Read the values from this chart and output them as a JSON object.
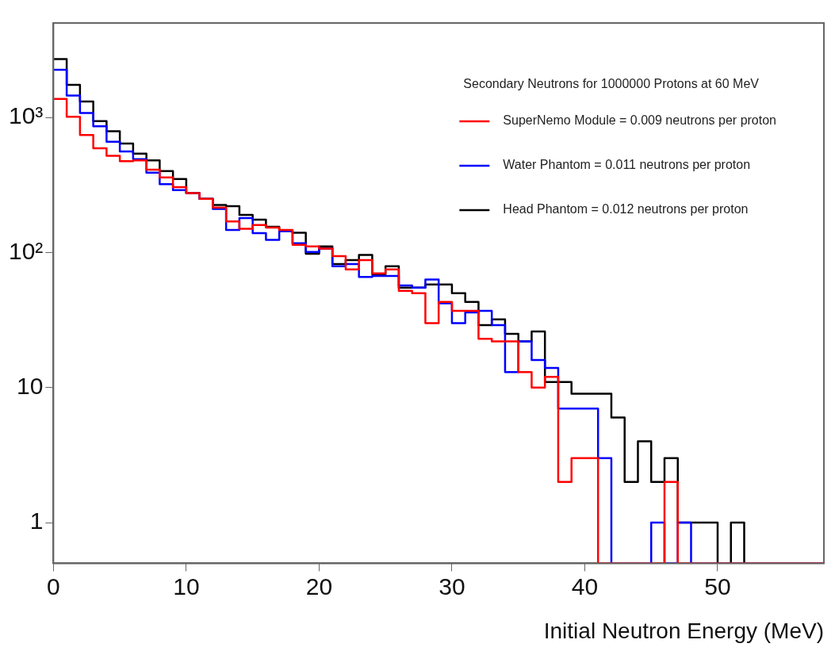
{
  "chart_data": {
    "type": "histogram",
    "xlabel": "Initial Neutron Energy (MeV)",
    "legend_title": "Secondary Neutrons for 1000000 Protons at 60 MeV",
    "bins": [
      0,
      1,
      2,
      3,
      4,
      5,
      6,
      7,
      8,
      9,
      10,
      11,
      12,
      13,
      14,
      15,
      16,
      17,
      18,
      19,
      20,
      21,
      22,
      23,
      24,
      25,
      26,
      27,
      28,
      29,
      30,
      31,
      32,
      33,
      34,
      35,
      36,
      37,
      38,
      39,
      40,
      41,
      42,
      43,
      44,
      45,
      46,
      47,
      48,
      49,
      50,
      51,
      52,
      53,
      54,
      55,
      56,
      57,
      58
    ],
    "series": [
      {
        "name": "SuperNemo Module = 0.009 neutrons per proton",
        "color": "#ff0000",
        "values": [
          1370,
          1010,
          740,
          590,
          520,
          475,
          480,
          410,
          360,
          305,
          275,
          250,
          215,
          170,
          150,
          160,
          153,
          147,
          114,
          111,
          107,
          94,
          75,
          88,
          70,
          75,
          52,
          50,
          30,
          43,
          37,
          37,
          23,
          22,
          22,
          13,
          10,
          12,
          2,
          3,
          3,
          null,
          null,
          null,
          null,
          null,
          2,
          null,
          null,
          null,
          null,
          null,
          null,
          null,
          null,
          null,
          null,
          null
        ]
      },
      {
        "name": "Water Phantom = 0.011 neutrons per proton",
        "color": "#0000ff",
        "values": [
          2250,
          1450,
          1080,
          860,
          660,
          560,
          490,
          390,
          320,
          290,
          275,
          250,
          210,
          147,
          180,
          139,
          124,
          144,
          117,
          101,
          107,
          79,
          82,
          66,
          67,
          67,
          57,
          55,
          63,
          42,
          30,
          36,
          37,
          29,
          13,
          22,
          16,
          14,
          7,
          7,
          7,
          3,
          null,
          null,
          null,
          1,
          null,
          1,
          null,
          null,
          null,
          null,
          null,
          null,
          null,
          null,
          null,
          null
        ]
      },
      {
        "name": "Head Phantom = 0.012 neutrons per proton",
        "color": "#000000",
        "values": [
          2700,
          1740,
          1310,
          940,
          790,
          640,
          540,
          480,
          400,
          350,
          275,
          250,
          225,
          220,
          190,
          175,
          155,
          145,
          140,
          98,
          111,
          82,
          88,
          96,
          69,
          79,
          55,
          55,
          58,
          58,
          50,
          43,
          29,
          32,
          25,
          22,
          26,
          11,
          11,
          9,
          9,
          9,
          6,
          2,
          4,
          2,
          3,
          1,
          1,
          1,
          null,
          1,
          null,
          null,
          null,
          null,
          null,
          null
        ]
      }
    ],
    "xlim": [
      0,
      58
    ],
    "xticks": [
      0,
      10,
      20,
      30,
      40,
      50
    ],
    "ylim": [
      0.5,
      5000
    ],
    "yticks": [
      1,
      10,
      {
        "value": 100,
        "label": "10²"
      },
      {
        "value": 1000,
        "label": "10³"
      }
    ],
    "log": "y",
    "grid": false,
    "legend": "top right"
  }
}
